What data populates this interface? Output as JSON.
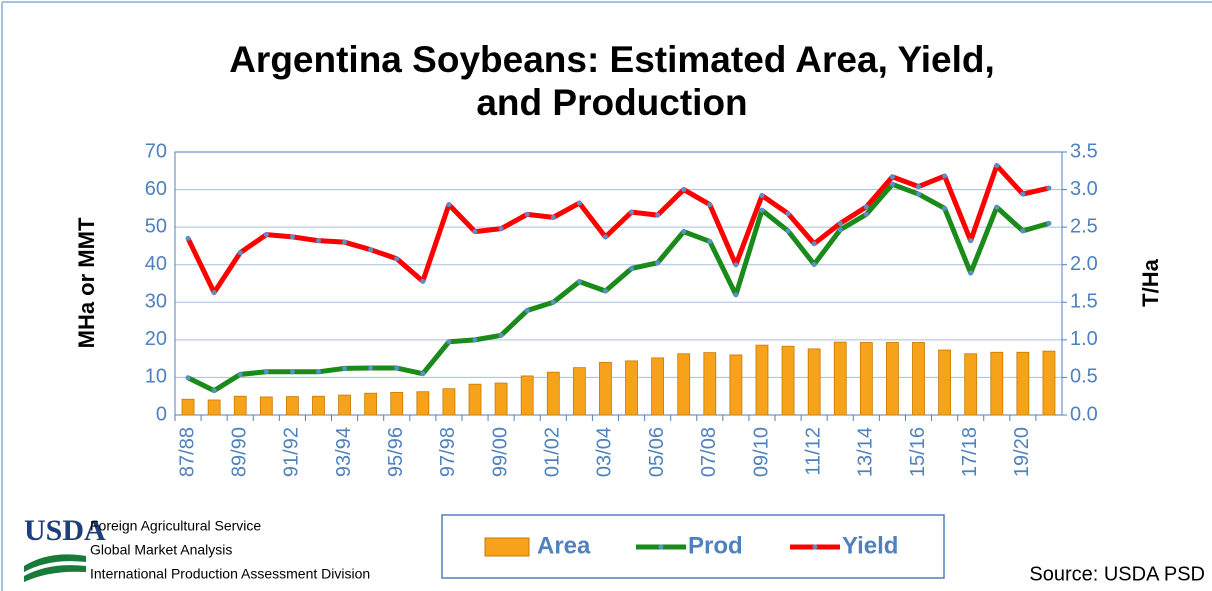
{
  "chart_data": {
    "type": "combo",
    "title": [
      "Argentina Soybeans:  Estimated Area, Yield,",
      "and Production"
    ],
    "y_label": "MHa or MMT",
    "y2_label": "T/Ha",
    "categories": [
      "87/88",
      null,
      "89/90",
      null,
      "91/92",
      null,
      "93/94",
      null,
      "95/96",
      null,
      "97/98",
      null,
      "99/00",
      null,
      "01/02",
      null,
      "03/04",
      null,
      "05/06",
      null,
      "07/08",
      null,
      "09/10",
      null,
      "11/12",
      null,
      "13/14",
      null,
      "15/16",
      null,
      "17/18",
      null,
      "19/20",
      null
    ],
    "series": [
      {
        "name": "Area",
        "kind": "bar",
        "color": "#f7a21b",
        "values": [
          4.2,
          4.0,
          5.0,
          4.8,
          4.9,
          5.0,
          5.3,
          5.8,
          6.0,
          6.2,
          7.0,
          8.2,
          8.5,
          10.4,
          11.4,
          12.6,
          14.0,
          14.4,
          15.2,
          16.3,
          16.6,
          16.0,
          18.6,
          18.3,
          17.6,
          19.4,
          19.3,
          19.3,
          19.3,
          17.3,
          16.3,
          16.7,
          16.7,
          17.0
        ]
      },
      {
        "name": "Prod",
        "kind": "line",
        "color": "#1a8a1a",
        "values": [
          9.9,
          6.5,
          10.8,
          11.5,
          11.5,
          11.5,
          12.4,
          12.5,
          12.5,
          11.0,
          19.5,
          20.0,
          21.2,
          27.8,
          30.0,
          35.5,
          33.0,
          39.0,
          40.5,
          48.8,
          46.2,
          32.0,
          54.5,
          49.0,
          40.1,
          49.3,
          53.4,
          61.4,
          58.8,
          55.0,
          37.8,
          55.3,
          49.0,
          51.0
        ]
      },
      {
        "name": "Yield",
        "kind": "line",
        "axis": "y2",
        "color": "#ff0000",
        "values": [
          2.35,
          1.63,
          2.16,
          2.4,
          2.37,
          2.32,
          2.3,
          2.2,
          2.08,
          1.78,
          2.8,
          2.44,
          2.48,
          2.67,
          2.63,
          2.82,
          2.37,
          2.7,
          2.66,
          3.0,
          2.8,
          2.0,
          2.92,
          2.68,
          2.28,
          2.55,
          2.77,
          3.17,
          3.04,
          3.18,
          2.32,
          3.32,
          2.94,
          3.02
        ]
      }
    ],
    "marker_color": "#5b8fc7",
    "ylim": [
      0,
      70
    ],
    "yticks": [
      0,
      10,
      20,
      30,
      40,
      50,
      60,
      70
    ],
    "y2lim": [
      0,
      3.5
    ],
    "y2ticks": [
      {
        "value": 0,
        "label": "0.0"
      },
      0.5,
      {
        "value": 1,
        "label": "1.0"
      },
      1.5,
      {
        "value": 2,
        "label": "2.0"
      },
      2.5,
      {
        "value": 3,
        "label": "3.0"
      },
      3.5
    ],
    "grid": true,
    "legend": "bottom"
  },
  "footer": {
    "logo": "USDA",
    "lines": [
      "Foreign Agricultural Service",
      "Global Market Analysis",
      "International Production Assessment Division"
    ],
    "source": "Source: USDA PSD"
  }
}
